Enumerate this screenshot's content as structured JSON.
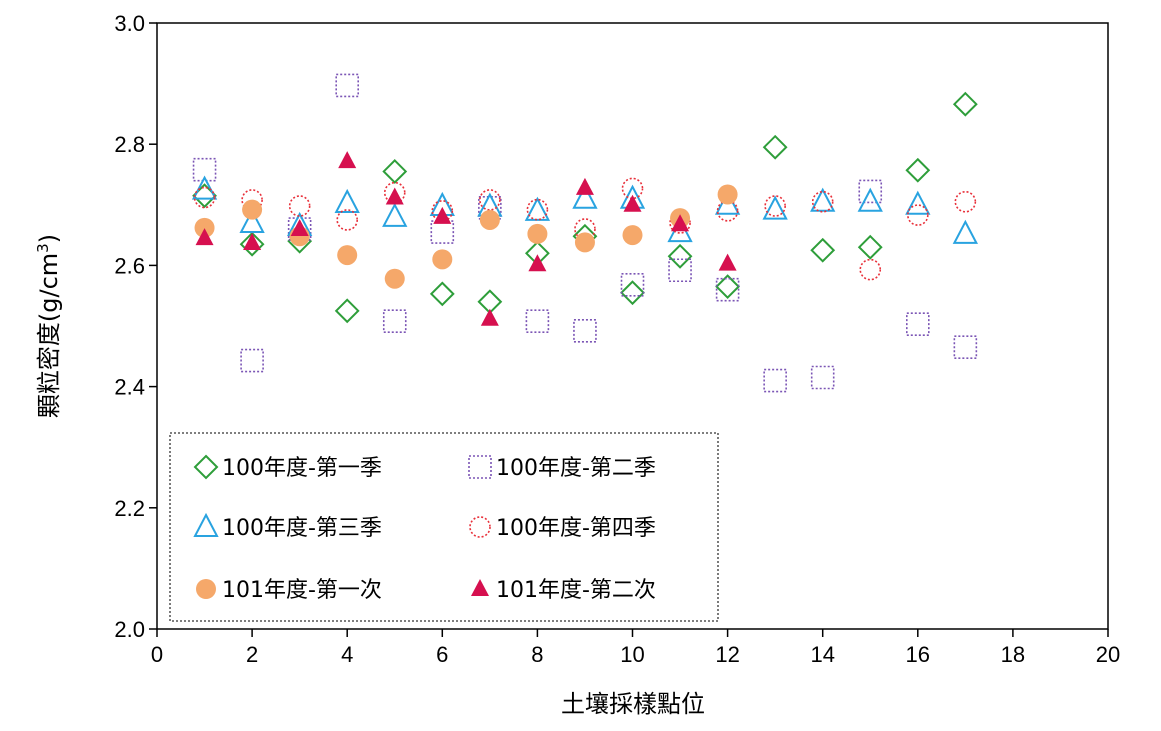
{
  "chart_data": {
    "type": "scatter",
    "xlabel": "土壤採樣點位",
    "ylabel": "顆粒密度(g/cm",
    "ylabel_sup": "3",
    "ylabel_close": ")",
    "xlim": [
      0,
      20
    ],
    "ylim": [
      2.0,
      3.0
    ],
    "x_ticks": [
      "0",
      "2",
      "4",
      "6",
      "8",
      "10",
      "12",
      "14",
      "16",
      "18",
      "20"
    ],
    "y_ticks": [
      "2.0",
      "2.2",
      "2.4",
      "2.6",
      "2.8",
      "3.0"
    ],
    "grid": false,
    "legend_position": "bottom-left",
    "series": [
      {
        "name": "100年度-第一季",
        "marker": "diamond-open",
        "color": "#2e9e3a",
        "points": [
          [
            1,
            2.715
          ],
          [
            2,
            2.635
          ],
          [
            3,
            2.64
          ],
          [
            4,
            2.525
          ],
          [
            5,
            2.755
          ],
          [
            6,
            2.553
          ],
          [
            7,
            2.54
          ],
          [
            8,
            2.62
          ],
          [
            9,
            2.648
          ],
          [
            10,
            2.555
          ],
          [
            11,
            2.615
          ],
          [
            12,
            2.565
          ],
          [
            13,
            2.795
          ],
          [
            14,
            2.625
          ],
          [
            15,
            2.63
          ],
          [
            16,
            2.757
          ],
          [
            17,
            2.866
          ]
        ]
      },
      {
        "name": "100年度-第二季",
        "marker": "square-open-dotted",
        "color": "#7b55b5",
        "points": [
          [
            1,
            2.758
          ],
          [
            2,
            2.443
          ],
          [
            3,
            2.66
          ],
          [
            4,
            2.897
          ],
          [
            5,
            2.508
          ],
          [
            6,
            2.655
          ],
          [
            7,
            2.695
          ],
          [
            8,
            2.508
          ],
          [
            9,
            2.492
          ],
          [
            10,
            2.568
          ],
          [
            11,
            2.592
          ],
          [
            12,
            2.56
          ],
          [
            13,
            2.41
          ],
          [
            14,
            2.415
          ],
          [
            15,
            2.722
          ],
          [
            16,
            2.503
          ],
          [
            17,
            2.465
          ]
        ]
      },
      {
        "name": "100年度-第三季",
        "marker": "triangle-open",
        "color": "#29a3e0",
        "points": [
          [
            1,
            2.725
          ],
          [
            2,
            2.67
          ],
          [
            3,
            2.665
          ],
          [
            4,
            2.703
          ],
          [
            5,
            2.68
          ],
          [
            6,
            2.698
          ],
          [
            7,
            2.697
          ],
          [
            8,
            2.69
          ],
          [
            9,
            2.71
          ],
          [
            10,
            2.71
          ],
          [
            11,
            2.655
          ],
          [
            12,
            2.7
          ],
          [
            13,
            2.692
          ],
          [
            14,
            2.705
          ],
          [
            15,
            2.705
          ],
          [
            16,
            2.7
          ],
          [
            17,
            2.652
          ]
        ]
      },
      {
        "name": "100年度-第四季",
        "marker": "circle-open-dotted",
        "color": "#e8303a",
        "points": [
          [
            1,
            2.712
          ],
          [
            2,
            2.708
          ],
          [
            3,
            2.698
          ],
          [
            4,
            2.675
          ],
          [
            5,
            2.72
          ],
          [
            6,
            2.69
          ],
          [
            7,
            2.708
          ],
          [
            8,
            2.692
          ],
          [
            9,
            2.66
          ],
          [
            10,
            2.727
          ],
          [
            11,
            2.67
          ],
          [
            12,
            2.69
          ],
          [
            13,
            2.698
          ],
          [
            14,
            2.705
          ],
          [
            15,
            2.593
          ],
          [
            16,
            2.683
          ],
          [
            17,
            2.705
          ]
        ]
      },
      {
        "name": "101年度-第一次",
        "marker": "circle-filled",
        "color": "#f5a86a",
        "points": [
          [
            1,
            2.662
          ],
          [
            2,
            2.692
          ],
          [
            3,
            2.648
          ],
          [
            4,
            2.617
          ],
          [
            5,
            2.578
          ],
          [
            6,
            2.61
          ],
          [
            7,
            2.675
          ],
          [
            8,
            2.652
          ],
          [
            9,
            2.638
          ],
          [
            10,
            2.65
          ],
          [
            11,
            2.678
          ],
          [
            12,
            2.717
          ]
        ]
      },
      {
        "name": "101年度-第二次",
        "marker": "triangle-filled",
        "color": "#d6104f",
        "points": [
          [
            1,
            2.645
          ],
          [
            2,
            2.637
          ],
          [
            3,
            2.66
          ],
          [
            4,
            2.772
          ],
          [
            5,
            2.712
          ],
          [
            6,
            2.68
          ],
          [
            7,
            2.512
          ],
          [
            8,
            2.602
          ],
          [
            9,
            2.728
          ],
          [
            10,
            2.7
          ],
          [
            11,
            2.668
          ],
          [
            12,
            2.603
          ]
        ]
      }
    ]
  }
}
